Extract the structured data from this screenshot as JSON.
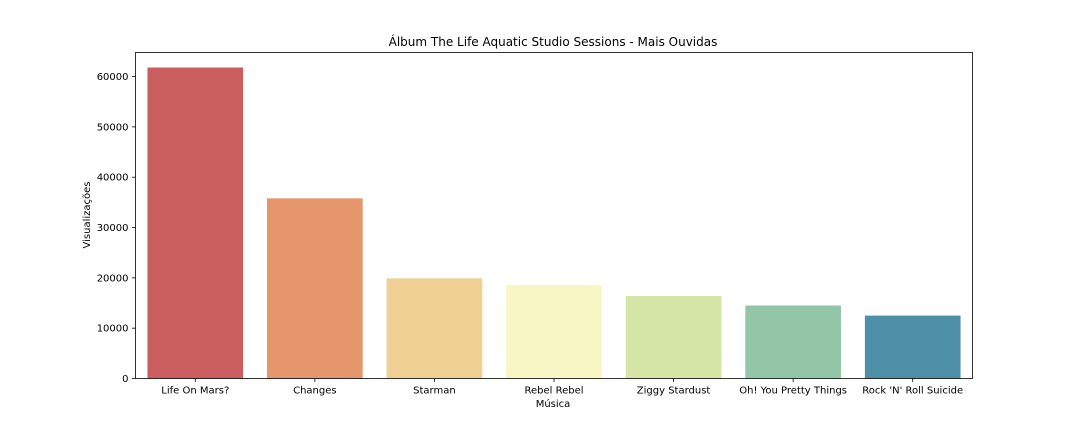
{
  "chart_data": {
    "type": "bar",
    "title": "Álbum The Life Aquatic Studio Sessions - Mais Ouvidas",
    "xlabel": "Música",
    "ylabel": "Visualizações",
    "categories": [
      "Life On Mars?",
      "Changes",
      "Starman",
      "Rebel Rebel",
      "Ziggy Stardust",
      "Oh! You Pretty Things",
      "Rock 'N' Roll Suicide"
    ],
    "values": [
      61800,
      35800,
      19900,
      18600,
      16400,
      14500,
      12500
    ],
    "colors": [
      "#ca5e5e",
      "#e5966a",
      "#f0cf93",
      "#f8f6c4",
      "#d4e5a5",
      "#93c6a6",
      "#4e8fa8"
    ],
    "ylim": [
      0,
      64780
    ],
    "yticks": [
      0,
      10000,
      20000,
      30000,
      40000,
      50000,
      60000
    ],
    "grid": false
  }
}
